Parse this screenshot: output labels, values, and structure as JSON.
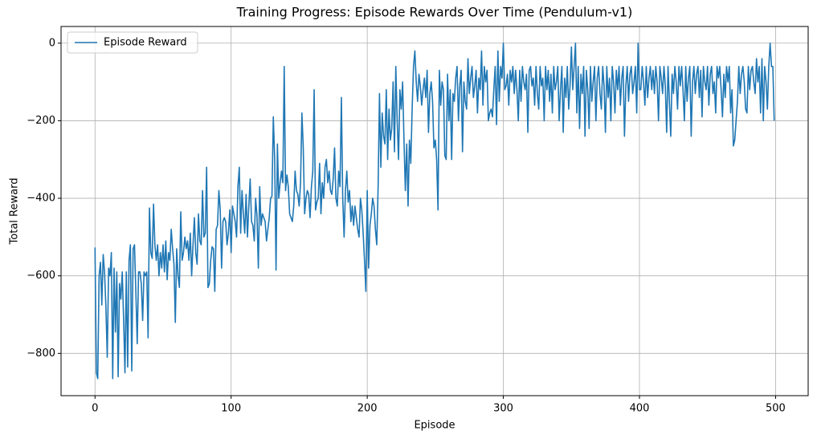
{
  "chart_data": {
    "type": "line",
    "title": "Training Progress: Episode Rewards Over Time (Pendulum-v1)",
    "x_label": "Episode",
    "y_label": "Total Reward",
    "xlim": [
      -24.95,
      523.95
    ],
    "xticks": [
      0,
      100,
      200,
      300,
      400,
      500
    ],
    "ylim": [
      -909,
      43
    ],
    "yticks": [
      {
        "value": -800,
        "label": "−800"
      },
      {
        "value": -600,
        "label": "−600"
      },
      {
        "value": -400,
        "label": "−400"
      },
      {
        "value": -200,
        "label": "−200"
      },
      0
    ],
    "grid": true,
    "legend": "upper left",
    "series": [
      {
        "name": "Episode Reward",
        "color": "#1f77b4",
        "values": [
          -527,
          -850,
          -865,
          -600,
          -565,
          -675,
          -545,
          -590,
          -680,
          -810,
          -580,
          -600,
          -540,
          -865,
          -580,
          -745,
          -590,
          -860,
          -620,
          -660,
          -590,
          -710,
          -850,
          -590,
          -835,
          -560,
          -520,
          -845,
          -530,
          -520,
          -640,
          -775,
          -590,
          -590,
          -620,
          -715,
          -590,
          -600,
          -590,
          -760,
          -425,
          -540,
          -555,
          -415,
          -520,
          -560,
          -520,
          -600,
          -540,
          -580,
          -520,
          -590,
          -510,
          -610,
          -540,
          -560,
          -480,
          -530,
          -570,
          -720,
          -530,
          -600,
          -630,
          -435,
          -560,
          -540,
          -500,
          -530,
          -510,
          -560,
          -490,
          -600,
          -520,
          -450,
          -540,
          -570,
          -440,
          -510,
          -520,
          -380,
          -500,
          -490,
          -320,
          -630,
          -620,
          -560,
          -525,
          -530,
          -640,
          -480,
          -470,
          -380,
          -430,
          -580,
          -460,
          -450,
          -460,
          -520,
          -490,
          -430,
          -540,
          -420,
          -440,
          -460,
          -500,
          -370,
          -320,
          -490,
          -380,
          -440,
          -490,
          -390,
          -500,
          -420,
          -350,
          -460,
          -470,
          -510,
          -400,
          -445,
          -580,
          -370,
          -470,
          -440,
          -450,
          -460,
          -510,
          -480,
          -450,
          -400,
          -395,
          -190,
          -300,
          -585,
          -260,
          -400,
          -360,
          -330,
          -360,
          -60,
          -380,
          -340,
          -370,
          -440,
          -450,
          -460,
          -420,
          -330,
          -380,
          -390,
          -420,
          -360,
          -180,
          -270,
          -440,
          -400,
          -380,
          -390,
          -450,
          -370,
          -330,
          -120,
          -430,
          -410,
          -400,
          -310,
          -440,
          -360,
          -400,
          -320,
          -300,
          -360,
          -330,
          -380,
          -390,
          -350,
          -270,
          -400,
          -420,
          -330,
          -370,
          -140,
          -400,
          -500,
          -380,
          -330,
          -410,
          -380,
          -460,
          -420,
          -470,
          -420,
          -450,
          -480,
          -500,
          -400,
          -430,
          -490,
          -560,
          -640,
          -380,
          -580,
          -470,
          -440,
          -400,
          -420,
          -480,
          -520,
          -370,
          -130,
          -320,
          -180,
          -240,
          -260,
          -120,
          -300,
          -170,
          -250,
          -220,
          -100,
          -280,
          -60,
          -200,
          -300,
          -120,
          -170,
          -100,
          -250,
          -380,
          -260,
          -420,
          -250,
          -310,
          -170,
          -60,
          -20,
          -100,
          -150,
          -80,
          -110,
          -160,
          -120,
          -90,
          -140,
          -70,
          -230,
          -130,
          -100,
          -150,
          -270,
          -250,
          -300,
          -430,
          -70,
          -160,
          -100,
          -120,
          -290,
          -300,
          -80,
          -200,
          -120,
          -300,
          -130,
          -150,
          -90,
          -60,
          -200,
          -110,
          -70,
          -280,
          -100,
          -150,
          -170,
          -40,
          -130,
          -90,
          -60,
          -140,
          -110,
          -70,
          -180,
          -90,
          -120,
          -20,
          -160,
          -60,
          -100,
          -70,
          -200,
          -180,
          -170,
          -190,
          -120,
          -60,
          -210,
          -20,
          -150,
          -60,
          -90,
          0,
          -120,
          -110,
          -80,
          -160,
          -70,
          -100,
          -60,
          -130,
          -70,
          -120,
          -200,
          -70,
          -150,
          -60,
          -100,
          -120,
          -80,
          -230,
          -70,
          -60,
          -110,
          -90,
          -160,
          -60,
          -130,
          -170,
          -60,
          -110,
          -90,
          -200,
          -60,
          -120,
          -70,
          -150,
          -80,
          -180,
          -60,
          -120,
          -100,
          -60,
          -200,
          -120,
          -60,
          -230,
          -90,
          -140,
          -60,
          -170,
          -110,
          -10,
          -120,
          -60,
          0,
          -180,
          -60,
          -220,
          -80,
          -130,
          -60,
          -240,
          -70,
          -120,
          -220,
          -60,
          -150,
          -100,
          -60,
          -200,
          -90,
          -60,
          -130,
          -170,
          -60,
          -110,
          -230,
          -60,
          -140,
          -90,
          -200,
          -60,
          -100,
          -180,
          -70,
          -120,
          -60,
          -160,
          -90,
          -60,
          -240,
          -110,
          -60,
          -150,
          -80,
          -60,
          -130,
          -100,
          -60,
          -180,
          0,
          -120,
          -120,
          -60,
          -100,
          -160,
          -60,
          -140,
          -90,
          -60,
          -120,
          -70,
          -130,
          -60,
          -100,
          -200,
          -60,
          -90,
          -130,
          -60,
          -110,
          -230,
          -60,
          -150,
          -240,
          -80,
          -130,
          -60,
          -100,
          -170,
          -60,
          -110,
          -60,
          -120,
          -200,
          -60,
          -150,
          -90,
          -60,
          -240,
          -100,
          -60,
          -130,
          -80,
          -60,
          -140,
          -70,
          -190,
          -60,
          -100,
          -120,
          -60,
          -160,
          -80,
          -60,
          -130,
          -100,
          -180,
          -60,
          -90,
          -60,
          -120,
          -190,
          -80,
          -140,
          -60,
          -100,
          -60,
          -180,
          -120,
          -265,
          -250,
          -200,
          -150,
          -60,
          -130,
          -80,
          -60,
          -100,
          -170,
          -180,
          -60,
          -120,
          -70,
          -60,
          -100,
          -130,
          -40,
          -100,
          -60,
          -180,
          -40,
          -200,
          -60,
          -100,
          -170,
          -60,
          0,
          -60,
          -60,
          -200
        ]
      }
    ]
  }
}
